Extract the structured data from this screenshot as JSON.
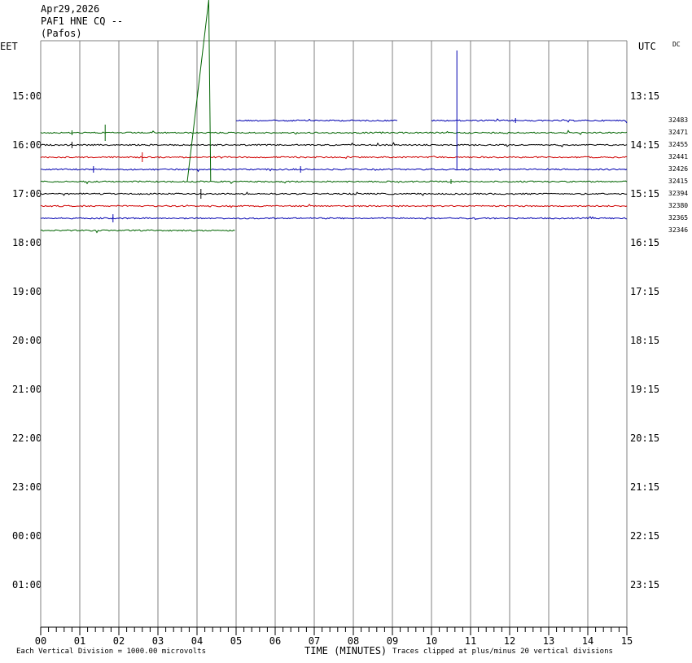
{
  "header": {
    "date": "Apr29,2026",
    "station": "PAF1 HNE CQ --",
    "location": "(Pafos)",
    "left_timezone": "EET",
    "right_timezone": "UTC",
    "dc_label": "DC"
  },
  "footer": {
    "xlabel": "TIME (MINUTES)",
    "scale_note": "Each Vertical Division = 1000.00 microvolts",
    "clip_note": "Traces clipped at plus/minus 20 vertical divisions"
  },
  "chart_data": {
    "type": "line",
    "title": "",
    "xlabel": "TIME (MINUTES)",
    "xlim": [
      0,
      15
    ],
    "x_ticks": [
      "00",
      "01",
      "02",
      "03",
      "04",
      "05",
      "06",
      "07",
      "08",
      "09",
      "10",
      "11",
      "12",
      "13",
      "14",
      "15"
    ],
    "grid": true,
    "hour_labels_left": [
      "15:00",
      "16:00",
      "17:00",
      "18:00",
      "19:00",
      "20:00",
      "21:00",
      "22:00",
      "23:00",
      "00:00",
      "01:00"
    ],
    "hour_labels_right": [
      "13:15",
      "14:15",
      "15:15",
      "16:15",
      "17:15",
      "18:15",
      "19:15",
      "20:15",
      "21:15",
      "22:15",
      "23:15"
    ],
    "series_colors": [
      "#0000b0",
      "#006400",
      "#000000",
      "#d00000"
    ],
    "traces": [
      {
        "row": 2,
        "color": "#0000b0",
        "segments": [
          [
            5.0,
            9.15
          ],
          [
            10.0,
            15.0
          ]
        ],
        "count": "32483"
      },
      {
        "row": 3,
        "color": "#006400",
        "segments": [
          [
            0,
            15.0
          ]
        ],
        "count": "32471"
      },
      {
        "row": 4,
        "color": "#000000",
        "segments": [
          [
            0,
            15.0
          ]
        ],
        "count": "32455"
      },
      {
        "row": 5,
        "color": "#d00000",
        "segments": [
          [
            0,
            15.0
          ]
        ],
        "count": "32441"
      },
      {
        "row": 6,
        "color": "#0000b0",
        "segments": [
          [
            0,
            15.0
          ]
        ],
        "count": "32426"
      },
      {
        "row": 7,
        "color": "#006400",
        "segments": [
          [
            0,
            15.0
          ]
        ],
        "count": "32415"
      },
      {
        "row": 8,
        "color": "#000000",
        "segments": [
          [
            0,
            15.0
          ]
        ],
        "count": "32394"
      },
      {
        "row": 9,
        "color": "#d00000",
        "segments": [
          [
            0,
            15.0
          ]
        ],
        "count": "32380"
      },
      {
        "row": 10,
        "color": "#0000b0",
        "segments": [
          [
            0,
            15.0
          ]
        ],
        "count": "32365"
      },
      {
        "row": 11,
        "color": "#006400",
        "segments": [
          [
            0,
            4.97
          ]
        ],
        "count": "32346"
      }
    ]
  }
}
